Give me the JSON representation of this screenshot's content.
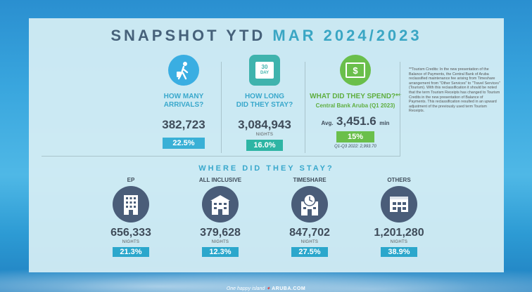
{
  "title": {
    "part1": "SNAPSHOT YTD",
    "part2": "MAR 2024/2023"
  },
  "arrivals": {
    "question": "HOW MANY ARRIVALS?",
    "value": "382,723",
    "change": "22.5%"
  },
  "stay": {
    "question_line1": "HOW LONG",
    "question_line2": "DID THEY STAY?",
    "value": "3,084,943",
    "unit": "NIGHTS",
    "change": "16.0%",
    "calendar_top": "30",
    "calendar_bottom": "DAY"
  },
  "spend": {
    "question": "WHAT DID THEY SPEND?**",
    "source": "Central Bank Aruba (Q1 2023)",
    "avg_label": "Avg.",
    "value": "3,451.6",
    "unit": "min",
    "change": "15%",
    "footnote": "Q1-Q3 2022: 2,993.70"
  },
  "note": "**Tourism Credits: In the new presentation of the Balance of Payments, the Central Bank of Aruba reclassified maintenance fee arising from Timeshare arrangement from \"Other Services\" to \"Travel Services\" (Tourism). With this reclassification it should be noted that the term Tourism Receipts has changed to Tourism Credits in the new presentation of Balance of Payments. This reclassification resulted in an upward adjustment of the previously used term Tourism Receipts.",
  "where_title": "WHERE DID THEY STAY?",
  "stays": [
    {
      "label": "EP",
      "value": "656,333",
      "unit": "NIGHTS",
      "change": "21.3%"
    },
    {
      "label": "ALL INCLUSIVE",
      "value": "379,628",
      "unit": "NIGHTS",
      "change": "12.3%"
    },
    {
      "label": "TIMESHARE",
      "value": "847,702",
      "unit": "NIGHTS",
      "change": "27.5%"
    },
    {
      "label": "OTHERS",
      "value": "1,201,280",
      "unit": "NIGHTS",
      "change": "38.9%"
    }
  ],
  "footer": {
    "tagline": "One happy island",
    "site": "ARUBA.COM"
  }
}
